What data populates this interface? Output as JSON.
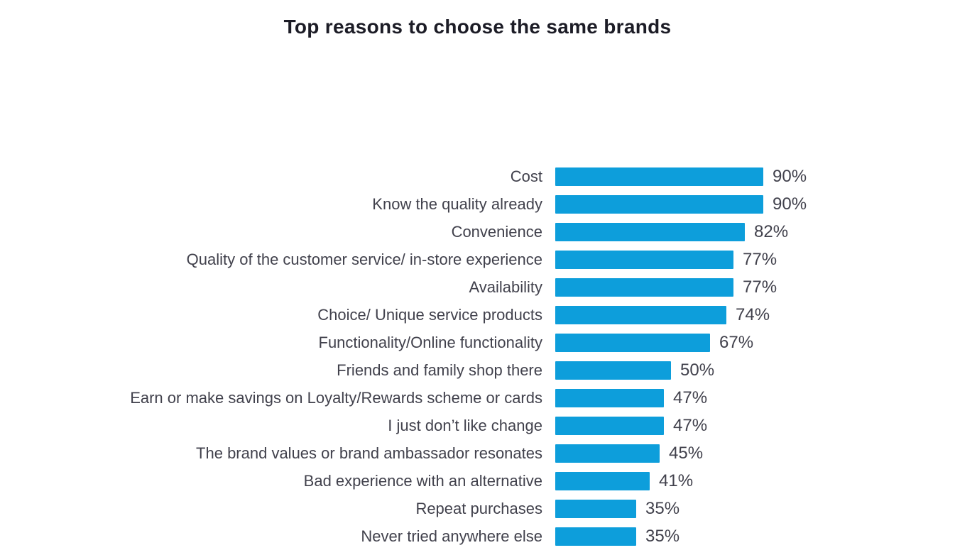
{
  "chart_data": {
    "type": "bar",
    "orientation": "horizontal",
    "title": "Top reasons to choose the same brands",
    "categories": [
      "Cost",
      "Know the quality already",
      "Convenience",
      "Quality of the customer service/ in-store experience",
      "Availability",
      "Choice/ Unique service products",
      "Functionality/Online functionality",
      "Friends and family shop there",
      "Earn or make savings on Loyalty/Rewards scheme or cards",
      "I just don’t like change",
      "The brand values or brand ambassador resonates",
      "Bad experience with an alternative",
      "Repeat purchases",
      "Never tried anywhere else"
    ],
    "values": [
      90,
      90,
      82,
      77,
      77,
      74,
      67,
      50,
      47,
      47,
      45,
      41,
      35,
      35
    ],
    "value_suffix": "%",
    "value_labels": [
      "90%",
      "90%",
      "82%",
      "77%",
      "77%",
      "74%",
      "67%",
      "50%",
      "47%",
      "47%",
      "45%",
      "41%",
      "35%",
      "35%"
    ],
    "xlim": [
      0,
      100
    ],
    "grid": false,
    "legend": false,
    "axes_shown": false,
    "bar_color": "#0d9edb",
    "label_color": "#41414c",
    "value_color": "#41414c",
    "title_color": "#1c1c26",
    "background_color": "#ffffff"
  }
}
